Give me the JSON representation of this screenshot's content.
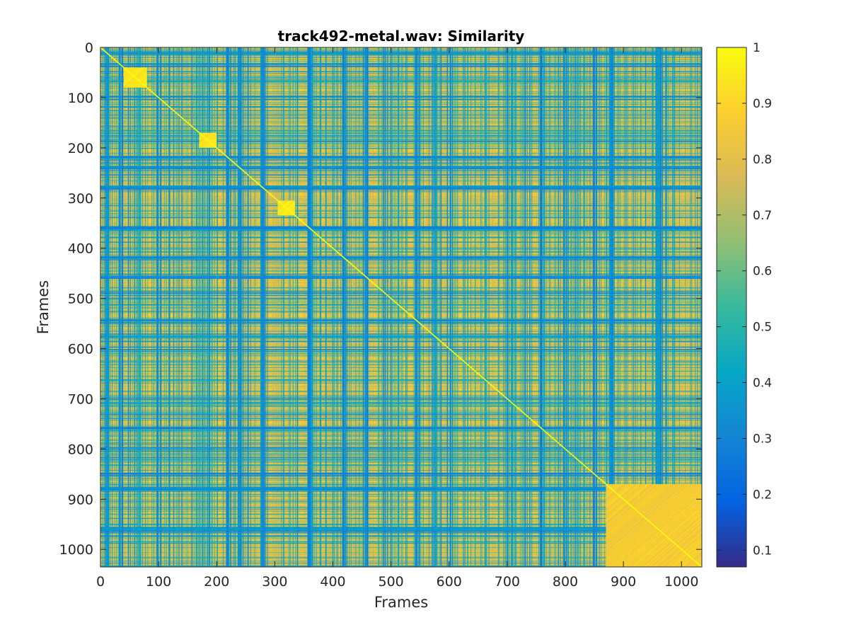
{
  "chart_data": {
    "type": "heatmap",
    "title": "track492-metal.wav: Similarity",
    "xlabel": "Frames",
    "ylabel": "Frames",
    "xlim": [
      0,
      1035
    ],
    "ylim": [
      0,
      1035
    ],
    "y_reversed": true,
    "x_ticks": [
      0,
      100,
      200,
      300,
      400,
      500,
      600,
      700,
      800,
      900,
      1000
    ],
    "y_ticks": [
      0,
      100,
      200,
      300,
      400,
      500,
      600,
      700,
      800,
      900,
      1000
    ],
    "x_tick_labels": [
      "0",
      "100",
      "200",
      "300",
      "400",
      "500",
      "600",
      "700",
      "800",
      "900",
      "1000"
    ],
    "y_tick_labels": [
      "0",
      "100",
      "200",
      "300",
      "400",
      "500",
      "600",
      "700",
      "800",
      "900",
      "1000"
    ],
    "matrix_size": [
      1035,
      1035
    ],
    "colorbar": {
      "clim": [
        0.07,
        1.0
      ],
      "ticks": [
        0.1,
        0.2,
        0.3,
        0.4,
        0.5,
        0.6,
        0.7,
        0.8,
        0.9,
        1.0
      ],
      "tick_labels": [
        "0.1",
        "0.2",
        "0.3",
        "0.4",
        "0.5",
        "0.6",
        "0.7",
        "0.8",
        "0.9",
        "1"
      ],
      "colormap": "parula",
      "colormap_stops": [
        "#352a87",
        "#0363e1",
        "#1485d4",
        "#06a7c6",
        "#38b99e",
        "#92bf73",
        "#d9ba56",
        "#fcce2e",
        "#f9fb0e"
      ]
    },
    "diagonal_value": 1.0,
    "bright_blocks": [
      {
        "frames": [
          40,
          80
        ],
        "value": 0.98
      },
      {
        "frames": [
          170,
          200
        ],
        "value": 0.97
      },
      {
        "frames": [
          305,
          335
        ],
        "value": 0.98
      },
      {
        "frames": [
          870,
          1035
        ],
        "value": 0.9
      }
    ],
    "low_similarity_bands_frames": [
      10,
      35,
      100,
      220,
      240,
      280,
      360,
      420,
      455,
      490,
      545,
      600,
      760,
      800,
      850,
      880,
      960
    ],
    "grid": false,
    "legend": "none"
  }
}
